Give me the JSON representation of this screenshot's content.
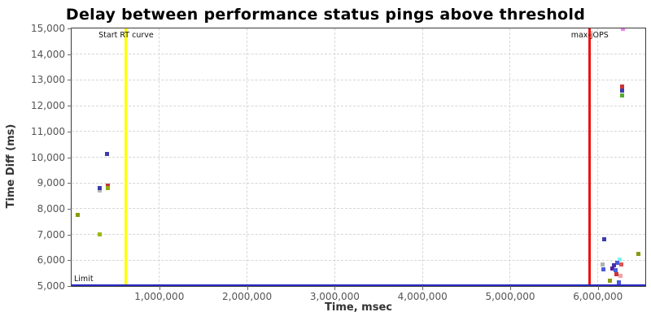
{
  "chart_data": {
    "type": "scatter",
    "title": "Delay between performance status pings above threshold",
    "xlabel": "Time, msec",
    "ylabel": "Time Diff (ms)",
    "xlim": [
      0,
      6540000
    ],
    "ylim": [
      5000,
      15000
    ],
    "grid": "dashed",
    "legend": "none",
    "x_ticks": [
      {
        "value": 1000000,
        "label": "1,000,000"
      },
      {
        "value": 2000000,
        "label": "2,000,000"
      },
      {
        "value": 3000000,
        "label": "3,000,000"
      },
      {
        "value": 4000000,
        "label": "4,000,000"
      },
      {
        "value": 5000000,
        "label": "5,000,000"
      },
      {
        "value": 6000000,
        "label": "6,000,000"
      }
    ],
    "y_ticks": [
      {
        "value": 5000,
        "label": "5,000"
      },
      {
        "value": 6000,
        "label": "6,000"
      },
      {
        "value": 7000,
        "label": "7,000"
      },
      {
        "value": 8000,
        "label": "8,000"
      },
      {
        "value": 9000,
        "label": "9,000"
      },
      {
        "value": 10000,
        "label": "10,000"
      },
      {
        "value": 11000,
        "label": "11,000"
      },
      {
        "value": 12000,
        "label": "12,000"
      },
      {
        "value": 13000,
        "label": "13,000"
      },
      {
        "value": 14000,
        "label": "14,000"
      },
      {
        "value": 15000,
        "label": "15,000"
      }
    ],
    "reference_lines": [
      {
        "id": "start-rt-curve",
        "orientation": "vertical",
        "value": 621000,
        "label": "Start RT curve",
        "color": "#ffff00"
      },
      {
        "id": "max-jops",
        "orientation": "vertical",
        "value": 5907000,
        "label": "max-jOPS",
        "color": "#ee1111"
      },
      {
        "id": "limit",
        "orientation": "horizontal",
        "value": 5000,
        "label": "Limit",
        "color": "#2b2bc4"
      }
    ],
    "points": [
      {
        "x": 74000,
        "y": 7770,
        "color": "#8a9a10"
      },
      {
        "x": 318000,
        "y": 8700,
        "color": "#b9b9b9"
      },
      {
        "x": 318000,
        "y": 8810,
        "color": "#3c3cae"
      },
      {
        "x": 411000,
        "y": 8910,
        "color": "#cc3333"
      },
      {
        "x": 411000,
        "y": 8800,
        "color": "#8faa14"
      },
      {
        "x": 322000,
        "y": 7010,
        "color": "#9ab811"
      },
      {
        "x": 405000,
        "y": 10130,
        "color": "#3c3cae"
      },
      {
        "x": 6285000,
        "y": 15000,
        "color": "#ee82ee"
      },
      {
        "x": 6280000,
        "y": 12730,
        "color": "#cc3333"
      },
      {
        "x": 6280000,
        "y": 12590,
        "color": "#3c3cae"
      },
      {
        "x": 6280000,
        "y": 12400,
        "color": "#55aa33"
      },
      {
        "x": 6070000,
        "y": 6820,
        "color": "#3c3cae"
      },
      {
        "x": 6460000,
        "y": 6240,
        "color": "#8a9a10"
      },
      {
        "x": 6250000,
        "y": 6020,
        "color": "#7df2f2"
      },
      {
        "x": 6220000,
        "y": 5890,
        "color": "#4a5cd8"
      },
      {
        "x": 6050000,
        "y": 5850,
        "color": "#b0b0b0"
      },
      {
        "x": 6270000,
        "y": 5840,
        "color": "#dd5555"
      },
      {
        "x": 6180000,
        "y": 5810,
        "color": "#4630a8"
      },
      {
        "x": 6060000,
        "y": 5650,
        "color": "#4a5cd8"
      },
      {
        "x": 6165000,
        "y": 5670,
        "color": "#55239b"
      },
      {
        "x": 6200000,
        "y": 5600,
        "color": "#4a5cd8"
      },
      {
        "x": 6215000,
        "y": 5460,
        "color": "#cc3333"
      },
      {
        "x": 6260000,
        "y": 5390,
        "color": "#f2a0a8"
      },
      {
        "x": 6140000,
        "y": 5190,
        "color": "#8a9a10"
      },
      {
        "x": 6240000,
        "y": 5130,
        "color": "#4a5cd8"
      }
    ]
  }
}
